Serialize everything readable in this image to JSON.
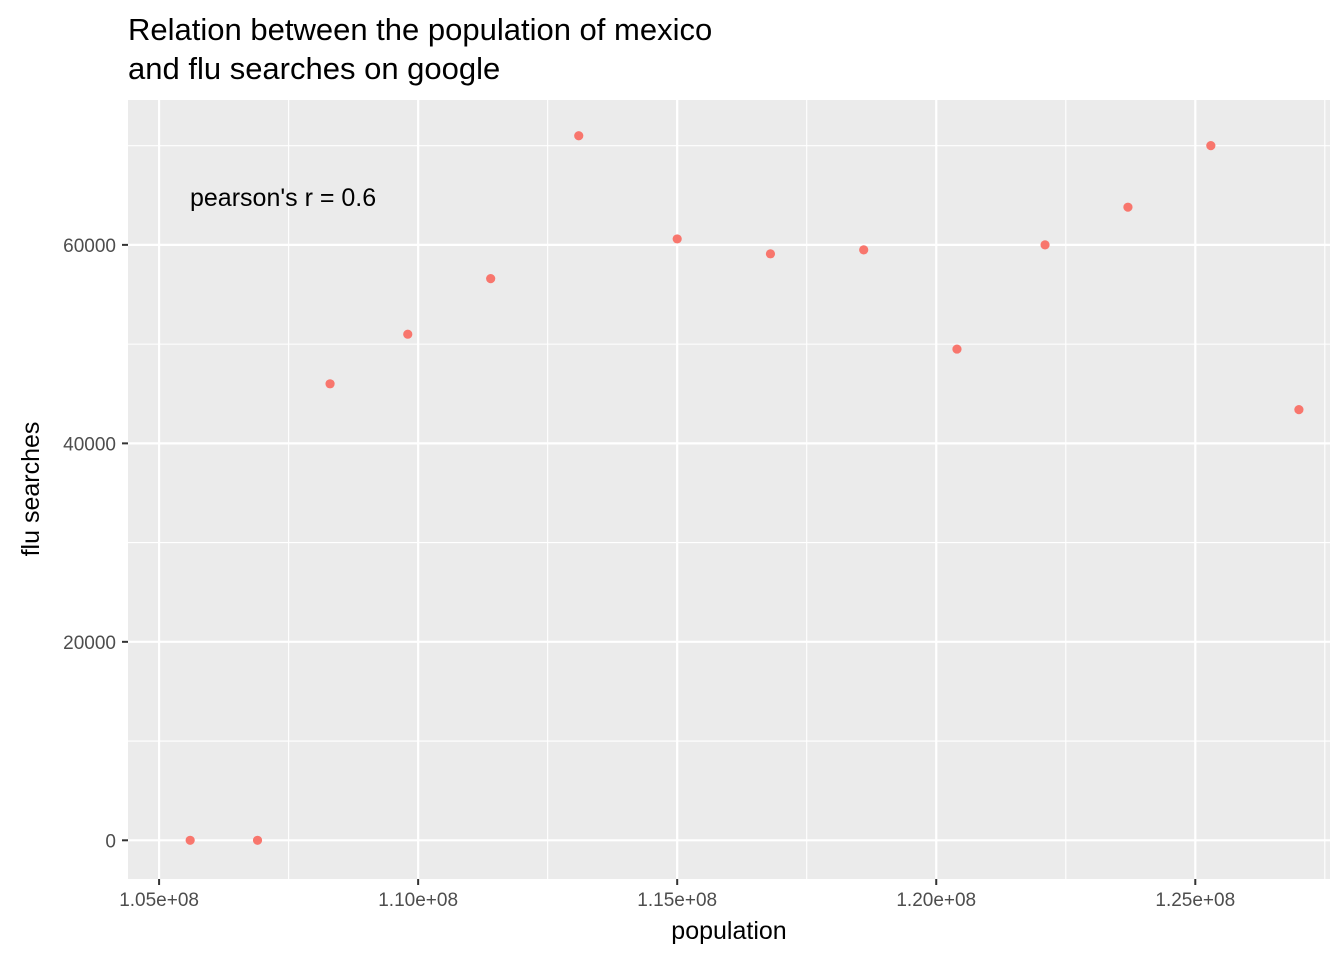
{
  "chart_data": {
    "type": "scatter",
    "title_lines": [
      "Relation between the population of mexico",
      "and flu searches on google"
    ],
    "xlabel": "population",
    "ylabel": "flu searches",
    "annotation": "pearson's r =  0.6",
    "x_ticks": [
      {
        "value": 105000000,
        "label": "1.05e+08"
      },
      {
        "value": 110000000,
        "label": "1.10e+08"
      },
      {
        "value": 115000000,
        "label": "1.15e+08"
      },
      {
        "value": 120000000,
        "label": "1.20e+08"
      },
      {
        "value": 125000000,
        "label": "1.25e+08"
      }
    ],
    "y_ticks": [
      {
        "value": 0,
        "label": "0"
      },
      {
        "value": 20000,
        "label": "20000"
      },
      {
        "value": 40000,
        "label": "40000"
      },
      {
        "value": 60000,
        "label": "60000"
      }
    ],
    "xlim": [
      104400000,
      127600000
    ],
    "ylim": [
      -3900,
      74600
    ],
    "grid": true,
    "point_color": "#f8766d",
    "panel_background": "#ebebeb",
    "points": [
      {
        "x": 105600000,
        "y": 0
      },
      {
        "x": 106900000,
        "y": 0
      },
      {
        "x": 108300000,
        "y": 46000
      },
      {
        "x": 109800000,
        "y": 51000
      },
      {
        "x": 111400000,
        "y": 56600
      },
      {
        "x": 113100000,
        "y": 71000
      },
      {
        "x": 115000000,
        "y": 60600
      },
      {
        "x": 116800000,
        "y": 59100
      },
      {
        "x": 118600000,
        "y": 59500
      },
      {
        "x": 120400000,
        "y": 49500
      },
      {
        "x": 122100000,
        "y": 60000
      },
      {
        "x": 123700000,
        "y": 63800
      },
      {
        "x": 125300000,
        "y": 70000
      },
      {
        "x": 127000000,
        "y": 43400
      }
    ]
  }
}
